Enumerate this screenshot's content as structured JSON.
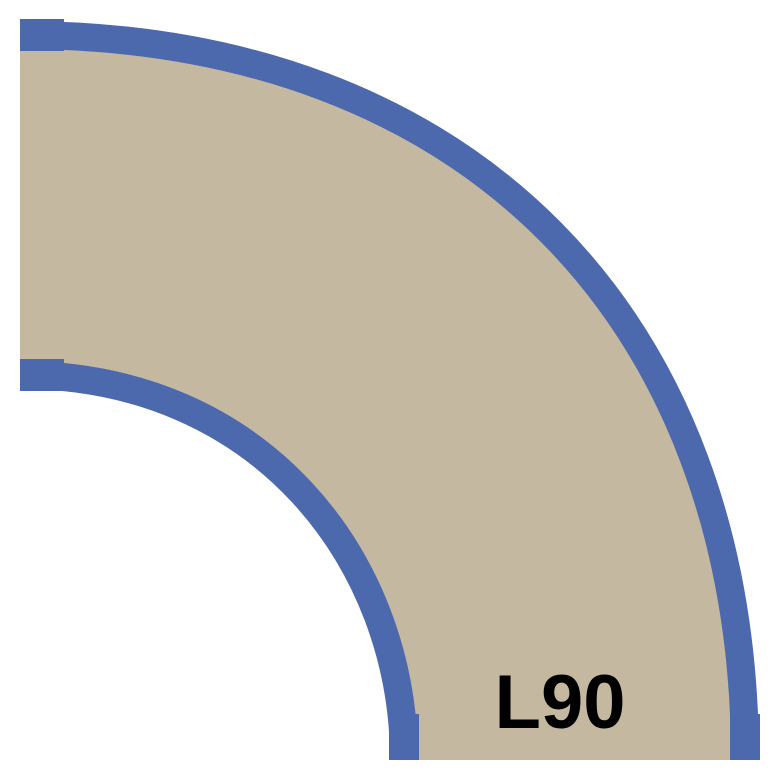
{
  "piece": {
    "label": "L90",
    "colors": {
      "fill": "#c4b8a0",
      "edge": "#4d69ae",
      "background": "#ffffff"
    }
  }
}
